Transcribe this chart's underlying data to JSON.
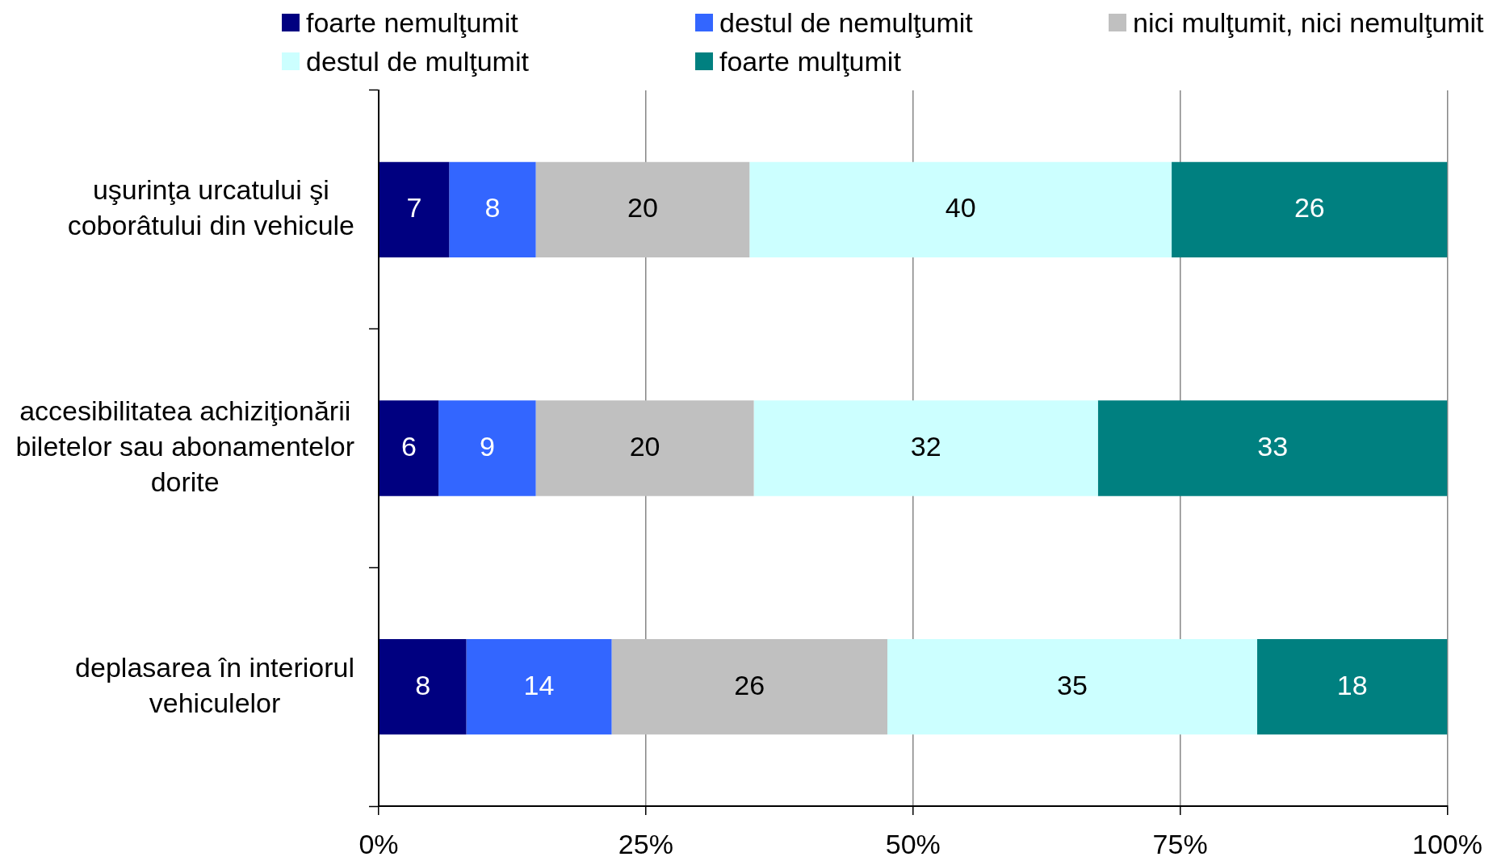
{
  "chart_data": {
    "type": "bar",
    "orientation": "horizontal",
    "stacked": true,
    "categories": [
      "uşurinţa urcatului şi coborâtului din vehicule",
      "accesibilitatea achiziţionării biletelor sau abonamentelor dorite",
      "deplasarea în interiorul vehiculelor"
    ],
    "series": [
      {
        "name": "foarte nemulţumit",
        "color": "#000080",
        "values": [
          6.6,
          5.6,
          8.2
        ],
        "value_labels": [
          "7",
          "6",
          "8"
        ]
      },
      {
        "name": "destul de nemulţumit",
        "color": "#3366ff",
        "values": [
          8.1,
          9.1,
          13.6
        ],
        "value_labels": [
          "8",
          "9",
          "14"
        ]
      },
      {
        "name": "nici mulţumit, nici nemulţumit",
        "color": "#c0c0c0",
        "values": [
          20.0,
          20.4,
          25.8
        ],
        "value_labels": [
          "20",
          "20",
          "26"
        ]
      },
      {
        "name": "destul de mulţumit",
        "color": "#ccffff",
        "values": [
          39.5,
          32.2,
          34.6
        ],
        "value_labels": [
          "40",
          "32",
          "35"
        ]
      },
      {
        "name": "foarte mulţumit",
        "color": "#008080",
        "values": [
          25.8,
          32.7,
          17.8
        ],
        "value_labels": [
          "26",
          "33",
          "18"
        ]
      }
    ],
    "xlim": [
      0,
      100
    ],
    "xticks": [
      {
        "value": 0,
        "label": "0%"
      },
      {
        "value": 25,
        "label": "25%"
      },
      {
        "value": 50,
        "label": "50%"
      },
      {
        "value": 75,
        "label": "75%"
      },
      {
        "value": 100,
        "label": "100%"
      }
    ],
    "grid": "x",
    "legend": "top"
  }
}
